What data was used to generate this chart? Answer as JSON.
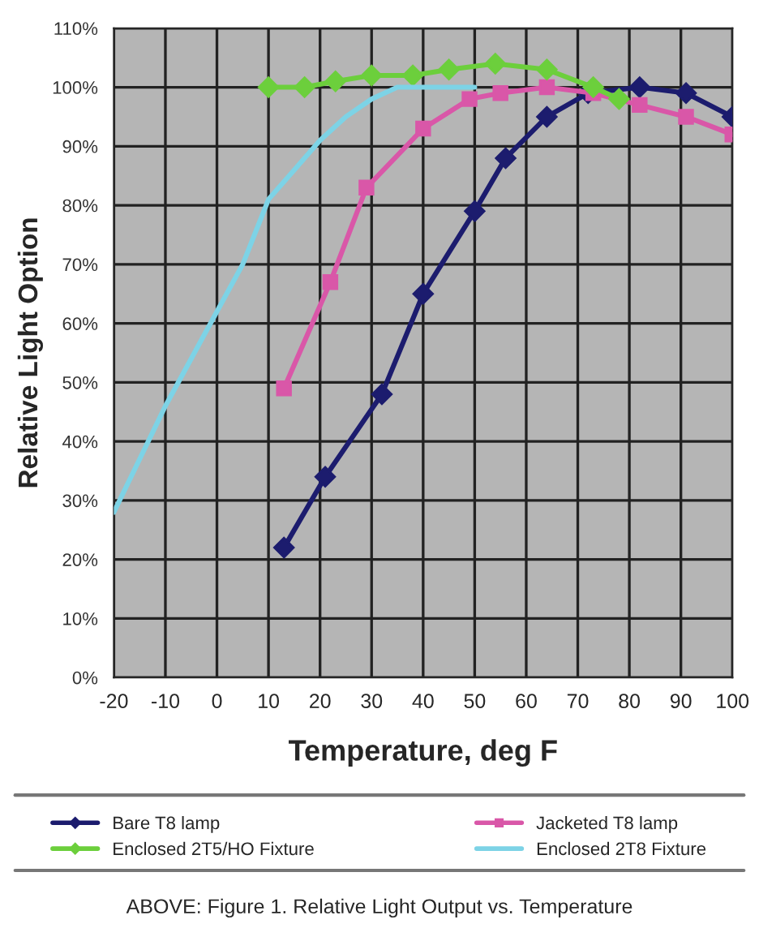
{
  "chart_data": {
    "type": "line",
    "xlabel": "Temperature, deg F",
    "ylabel": "Relative Light Option",
    "xlim": [
      -20,
      100
    ],
    "xticks": [
      -20,
      -10,
      0,
      10,
      20,
      30,
      40,
      50,
      60,
      70,
      80,
      90,
      100
    ],
    "ylim": [
      0,
      110
    ],
    "yticks": [
      {
        "value": 0,
        "label": "0%"
      },
      {
        "value": 10,
        "label": "10%"
      },
      {
        "value": 20,
        "label": "20%"
      },
      {
        "value": 30,
        "label": "30%"
      },
      {
        "value": 40,
        "label": "40%"
      },
      {
        "value": 50,
        "label": "50%"
      },
      {
        "value": 60,
        "label": "60%"
      },
      {
        "value": 70,
        "label": "70%"
      },
      {
        "value": 80,
        "label": "80%"
      },
      {
        "value": 90,
        "label": "90%"
      },
      {
        "value": 100,
        "label": "100%"
      },
      {
        "value": 110,
        "label": "110%"
      }
    ],
    "grid": true,
    "legend": "bottom",
    "line_style": "solid",
    "series": [
      {
        "name": "Bare T8 lamp",
        "color": "#1c1c6e",
        "marker": "diamond",
        "x": [
          13,
          21,
          32,
          40,
          50,
          56,
          64,
          72,
          82,
          91,
          100
        ],
        "values": [
          22,
          34,
          48,
          65,
          79,
          88,
          95,
          99,
          100,
          99,
          95
        ]
      },
      {
        "name": "Jacketed T8 lamp",
        "color": "#d957a8",
        "marker": "square",
        "x": [
          13,
          22,
          29,
          40,
          49,
          55,
          64,
          73,
          82,
          91,
          100
        ],
        "values": [
          49,
          67,
          83,
          93,
          98,
          99,
          100,
          99,
          97,
          95,
          92
        ]
      },
      {
        "name": "Enclosed 2T5/HO Fixture",
        "color": "#6ccf3c",
        "marker": "diamond",
        "x": [
          10,
          17,
          23,
          30,
          38,
          45,
          54,
          64,
          73,
          78
        ],
        "values": [
          100,
          100,
          101,
          102,
          102,
          103,
          104,
          103,
          100,
          98
        ]
      },
      {
        "name": "Enclosed 2T8 Fixture",
        "color": "#7dd3e6",
        "marker": "none",
        "x": [
          -20,
          -15,
          -10,
          -5,
          0,
          5,
          10,
          15,
          20,
          25,
          30,
          35,
          40,
          50
        ],
        "values": [
          28,
          37,
          46,
          54,
          62,
          70,
          81,
          86,
          91,
          95,
          98,
          100,
          100,
          100
        ]
      }
    ],
    "annotations": [
      "ABOVE: Figure 1. Relative Light Output vs. Temperature"
    ]
  }
}
